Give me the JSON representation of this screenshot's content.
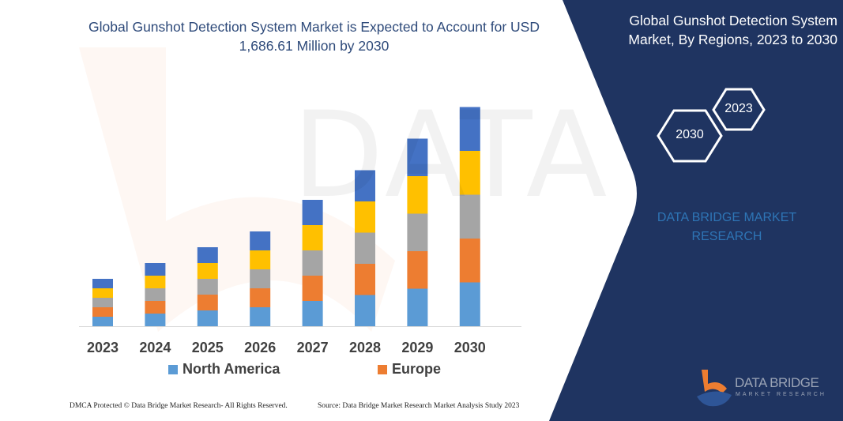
{
  "chart_data": {
    "type": "bar",
    "stacked": true,
    "title": "Global Gunshot Detection System Market is Expected to Account for USD 1,686.61 Million by 2030",
    "categories": [
      "2023",
      "2024",
      "2025",
      "2026",
      "2027",
      "2028",
      "2029",
      "2030"
    ],
    "series": [
      {
        "name": "North America",
        "color": "#5B9BD5",
        "values": [
          12,
          16,
          20,
          24,
          32,
          39.5,
          47.5,
          55.5
        ]
      },
      {
        "name": "Europe",
        "color": "#ED7D31",
        "values": [
          12,
          16,
          20,
          24,
          32,
          39.5,
          47.5,
          55.5
        ]
      },
      {
        "color": "#A5A5A5",
        "values": [
          12,
          16,
          20,
          24,
          32,
          39.5,
          47.5,
          55.5
        ]
      },
      {
        "color": "#FFC000",
        "values": [
          12,
          16,
          20,
          24,
          32,
          39.5,
          47.5,
          55.5
        ]
      },
      {
        "color": "#4472C4",
        "values": [
          12,
          16,
          20,
          24,
          32,
          39.5,
          47.5,
          55.5
        ]
      }
    ],
    "y_axis_shown": false,
    "grid": false,
    "legend": "bottom"
  },
  "panel": {
    "title": "Global Gunshot Detection System Market, By Regions, 2023 to 2030",
    "hex_end": "2030",
    "hex_start": "2023",
    "brand": "DATA BRIDGE MARKET RESEARCH",
    "logo_name": "DATA BRIDGE",
    "logo_sub": "MARKET RESEARCH",
    "color": "#1F3461"
  },
  "footer": {
    "left": "DMCA Protected © Data Bridge Market Research-  All Rights Reserved.",
    "right": "Source: Data Bridge Market Research  Market Analysis Study 2023"
  }
}
